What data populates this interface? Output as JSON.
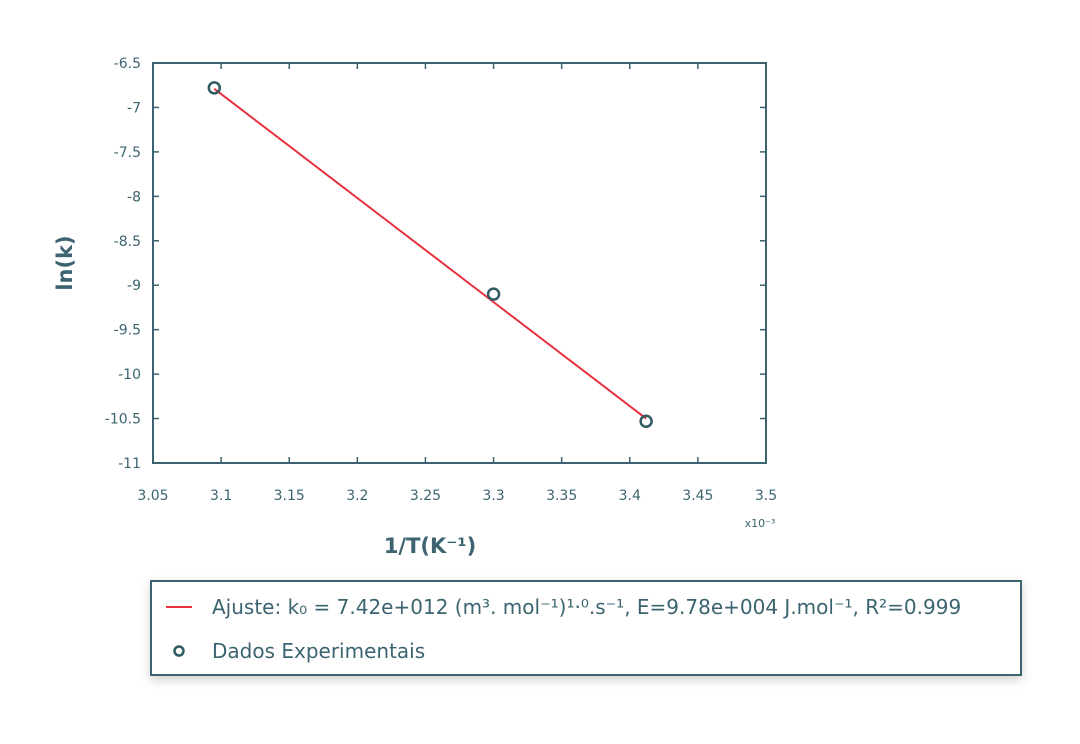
{
  "chart_data": {
    "type": "line",
    "xlabel": "1/T(K⁻¹)",
    "ylabel": "ln(k)",
    "x_multiplier": "x10⁻³",
    "xlim": [
      3.05,
      3.5
    ],
    "xticks": [
      3.05,
      3.1,
      3.15,
      3.2,
      3.25,
      3.3,
      3.35,
      3.4,
      3.45,
      3.5
    ],
    "ylim": [
      -11,
      -6.5
    ],
    "yticks": [
      -11,
      -10.5,
      -10,
      -9.5,
      -9,
      -8.5,
      -8,
      -7.5,
      -7,
      -6.5
    ],
    "axis_color": "#3b6470",
    "series": [
      {
        "name": "Ajuste: k₀ = 7.42e+012 (m³. mol⁻¹)¹·⁰.s⁻¹, E=9.78e+004 J.mol⁻¹, R²=0.999",
        "color": "#e8313f",
        "mode": "line",
        "x": [
          3.095,
          3.412
        ],
        "values": [
          -6.79,
          -10.5
        ]
      },
      {
        "name": "Dados Experimentais",
        "color": "#2f5b63",
        "mode": "markers",
        "x": [
          3.095,
          3.3,
          3.412
        ],
        "values": [
          -6.78,
          -9.1,
          -10.53
        ]
      }
    ]
  }
}
